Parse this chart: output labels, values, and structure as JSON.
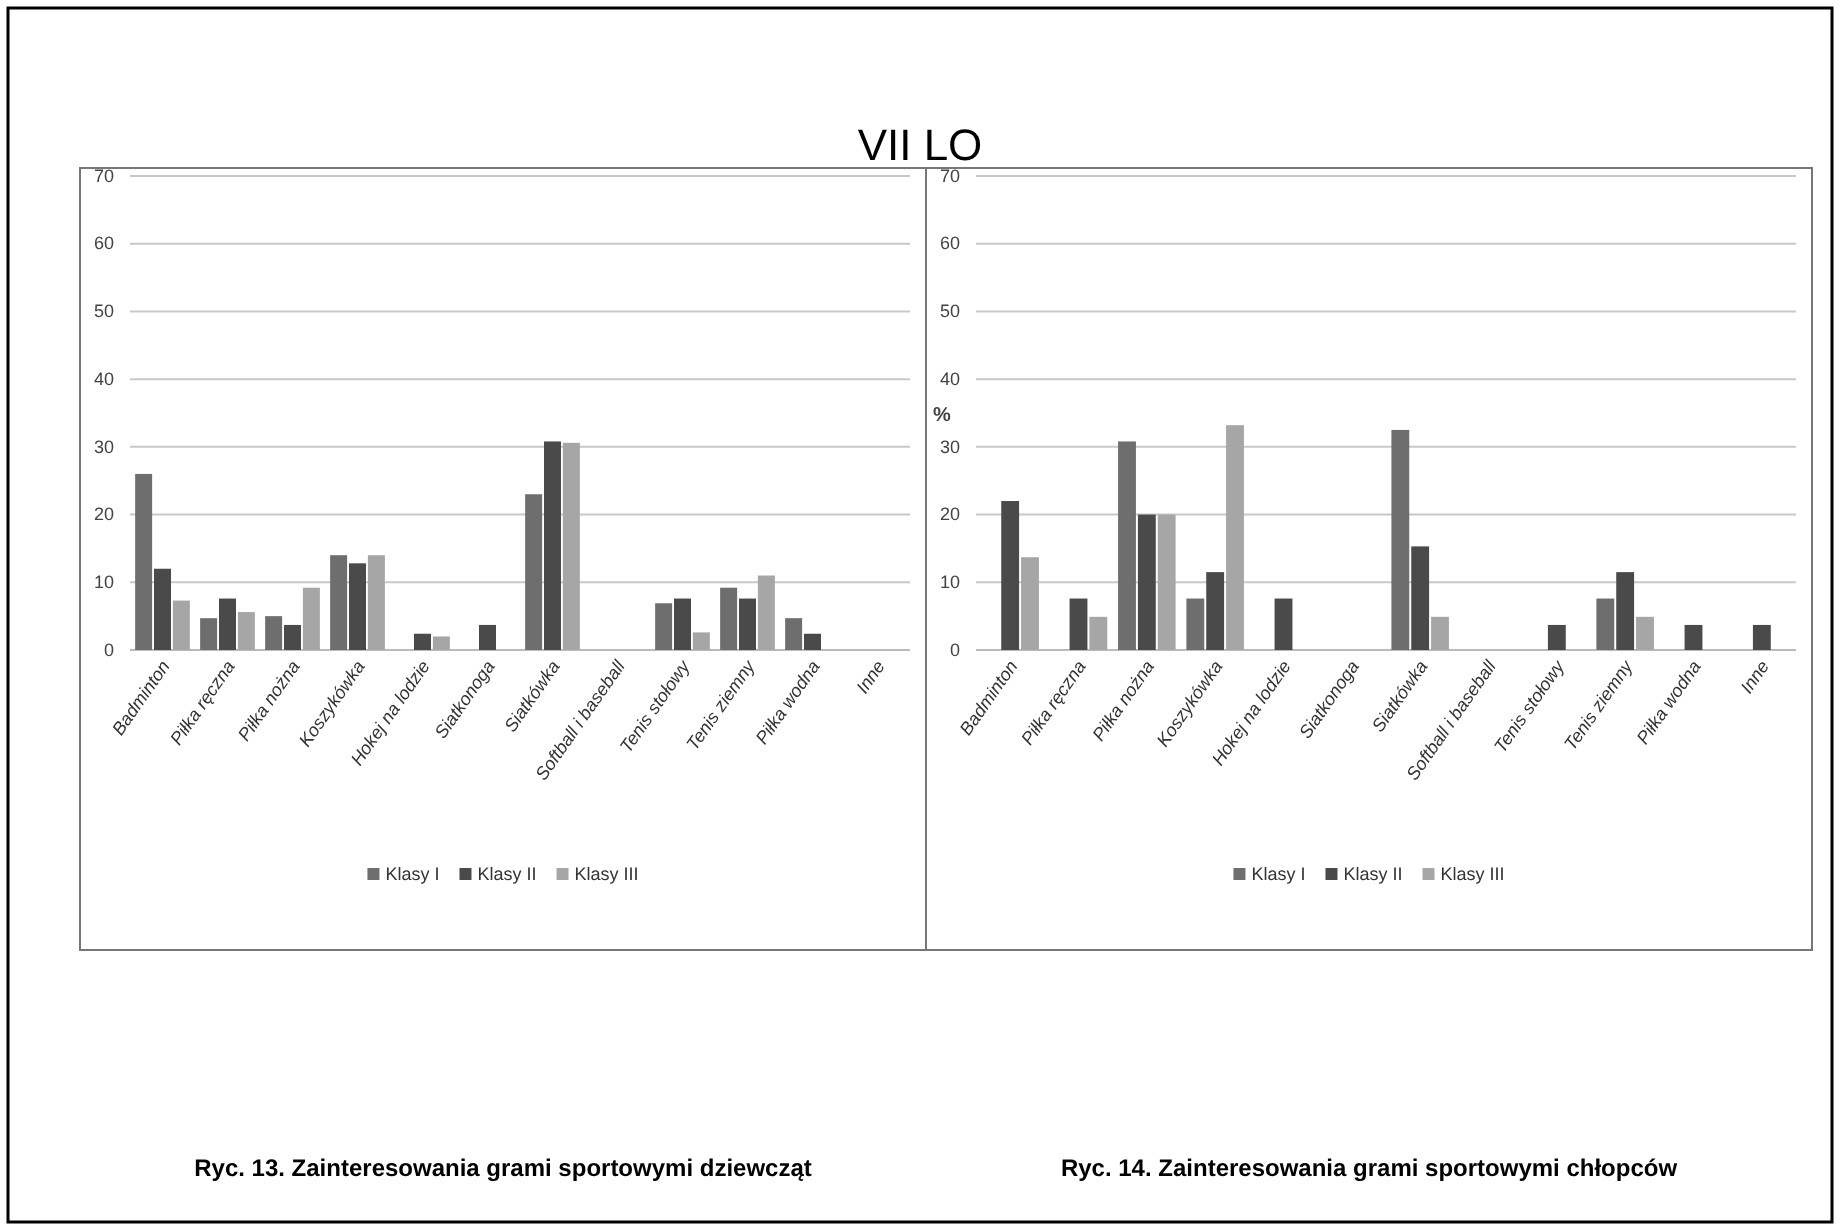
{
  "chart_data": [
    {
      "type": "bar",
      "title": "VII LO",
      "categories": [
        "Badminton",
        "Piłka ręczna",
        "Piłka nożna",
        "Koszykówka",
        "Hokej na lodzie",
        "Siatkonoga",
        "Siatkówka",
        "Softball i baseball",
        "Tenis stołowy",
        "Tenis ziemny",
        "Piłka wodna",
        "Inne"
      ],
      "series": [
        {
          "name": "Klasy I",
          "color": "#6e6e6e",
          "values": [
            26,
            4.7,
            5,
            14,
            null,
            null,
            23,
            null,
            6.9,
            9.2,
            4.7,
            null
          ]
        },
        {
          "name": "Klasy II",
          "color": "#4a4a4a",
          "values": [
            12,
            7.6,
            3.7,
            12.8,
            2.4,
            3.7,
            30.8,
            null,
            7.6,
            7.6,
            2.4,
            null
          ]
        },
        {
          "name": "Klasy III",
          "color": "#a6a6a6",
          "values": [
            7.3,
            5.6,
            9.2,
            14,
            2,
            null,
            30.6,
            null,
            2.6,
            11,
            null,
            null
          ]
        }
      ],
      "ylim": [
        0,
        70
      ],
      "yticks": [
        0,
        10,
        20,
        30,
        40,
        50,
        60,
        70
      ],
      "grid": "y",
      "legend": "bottom",
      "annotations": [
        "Ryc. 13. Zainteresowania grami sportowymi dziewcząt"
      ]
    },
    {
      "type": "bar",
      "ylabel": "%",
      "categories": [
        "Badminton",
        "Piłka ręczna",
        "Piłka nożna",
        "Koszykówka",
        "Hokej na lodzie",
        "Siatkonoga",
        "Siatkówka",
        "Softball i baseball",
        "Tenis stołowy",
        "Tenis ziemny",
        "Piłka wodna",
        "Inne"
      ],
      "series": [
        {
          "name": "Klasy I",
          "color": "#6e6e6e",
          "values": [
            null,
            null,
            30.8,
            7.6,
            null,
            null,
            32.5,
            null,
            null,
            7.6,
            null,
            null
          ]
        },
        {
          "name": "Klasy II",
          "color": "#4a4a4a",
          "values": [
            22,
            7.6,
            20,
            11.5,
            7.6,
            null,
            15.3,
            null,
            3.7,
            11.5,
            3.7,
            3.7
          ]
        },
        {
          "name": "Klasy III",
          "color": "#a6a6a6",
          "values": [
            13.7,
            4.9,
            20,
            33.2,
            null,
            null,
            4.9,
            null,
            null,
            4.9,
            null,
            null
          ]
        }
      ],
      "ylim": [
        0,
        70
      ],
      "yticks": [
        0,
        10,
        20,
        30,
        40,
        50,
        60,
        70
      ],
      "grid": "y",
      "legend": "bottom",
      "annotations": [
        "Ryc. 14. Zainteresowania grami sportowymi chłopców"
      ]
    }
  ]
}
